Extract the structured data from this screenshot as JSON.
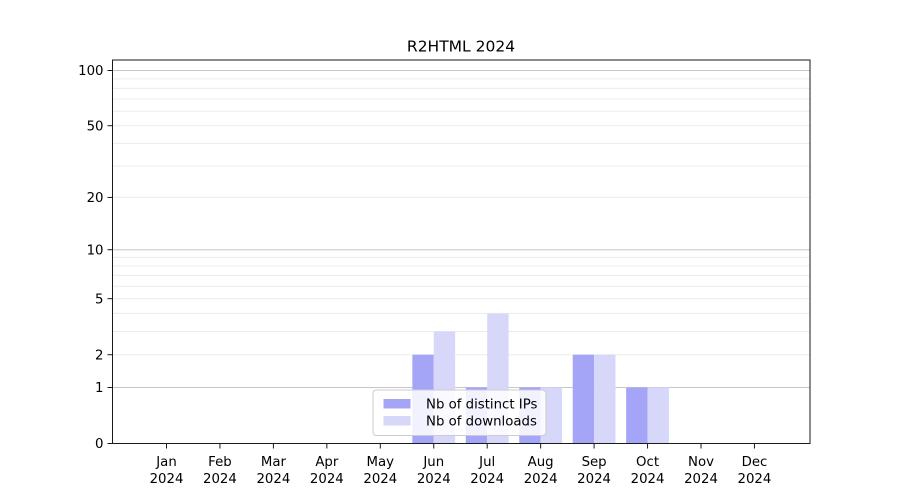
{
  "chart_data": {
    "type": "bar",
    "title": "R2HTML 2024",
    "scale": "log1p",
    "categories": [
      "Jan",
      "Feb",
      "Mar",
      "Apr",
      "May",
      "Jun",
      "Jul",
      "Aug",
      "Sep",
      "Oct",
      "Nov",
      "Dec"
    ],
    "x_tick_year_line": "2024",
    "series": [
      {
        "name": "Nb of distinct IPs",
        "color": "#a5a5f8",
        "values": [
          0,
          0,
          0,
          0,
          0,
          2,
          1,
          1,
          2,
          1,
          0,
          0
        ]
      },
      {
        "name": "Nb of downloads",
        "color": "#d7d7fa",
        "values": [
          0,
          0,
          0,
          0,
          0,
          3,
          4,
          1,
          2,
          1,
          0,
          0
        ]
      }
    ],
    "ylim": [
      0,
      114
    ],
    "xlabel": "",
    "ylabel": "",
    "y_ticks": [
      0,
      1,
      2,
      5,
      10,
      20,
      50,
      100
    ],
    "grid_major": [
      1,
      10,
      100
    ],
    "grid_minor": [
      2,
      3,
      4,
      5,
      6,
      7,
      8,
      9,
      20,
      30,
      40,
      50,
      60,
      70,
      80,
      90
    ],
    "legend": {
      "position": "lower center",
      "items": [
        "Nb of distinct IPs",
        "Nb of downloads"
      ]
    },
    "colors": {
      "background": "#ffffff",
      "axis": "#1a1a1a",
      "grid_major": "#c6c6c6",
      "grid_minor": "#ececec",
      "legend_edge": "#cccccc",
      "legend_bg": "#ffffff",
      "legend_bg_alpha": 0.85,
      "text": "#000000"
    }
  }
}
